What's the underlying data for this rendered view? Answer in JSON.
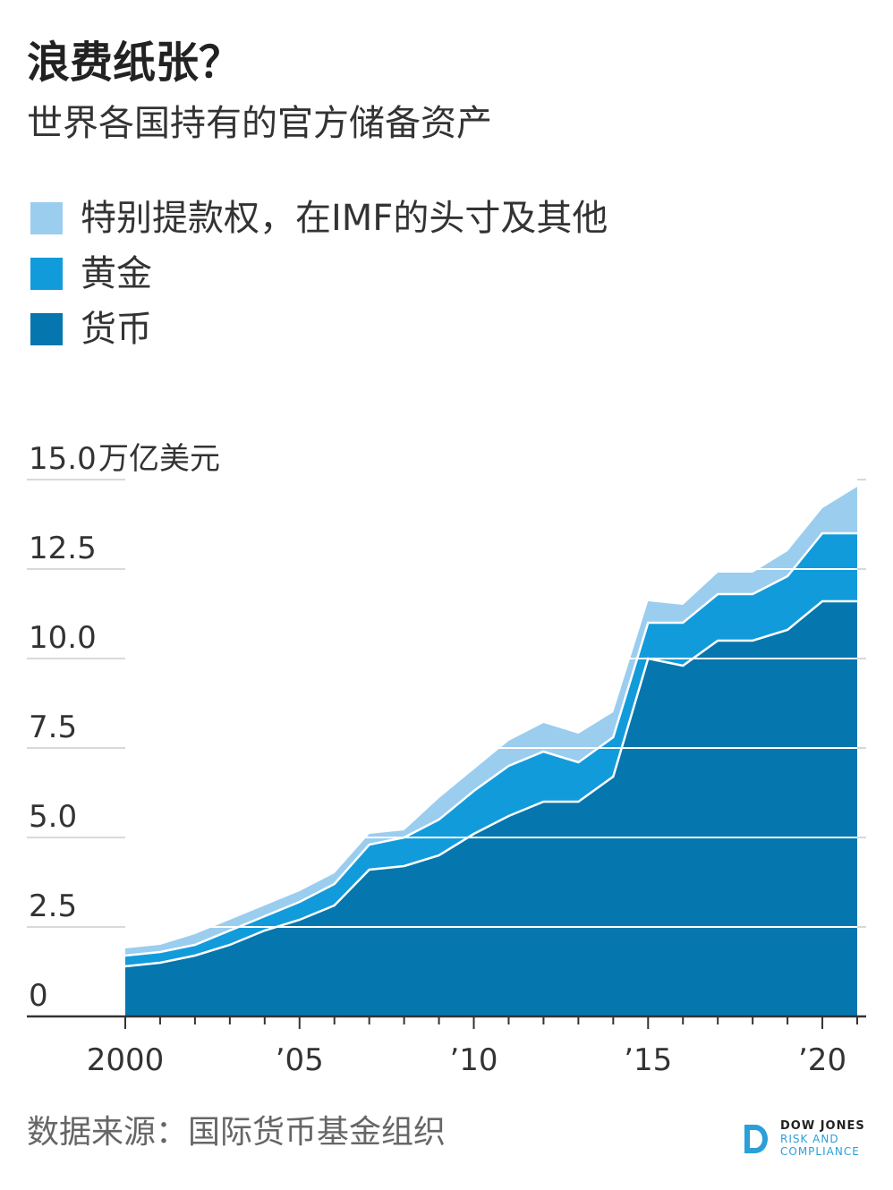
{
  "header": {
    "title": "浪费纸张？",
    "subtitle": "世界各国持有的官方储备资产"
  },
  "legend": [
    {
      "label": "特别提款权，在IMF的头寸及其他",
      "color": "#9bcdef"
    },
    {
      "label": "黄金",
      "color": "#129bdb"
    },
    {
      "label": "货币",
      "color": "#0576ae"
    }
  ],
  "source": "数据来源：国际货币基金组织",
  "brand": {
    "line1": "DOW JONES",
    "line2": "RISK AND",
    "line3": "COMPLIANCE",
    "color": "#2a9fd8"
  },
  "chart_data": {
    "type": "area",
    "stacked": true,
    "y_unit_label": "万亿美元",
    "x": [
      2000,
      2001,
      2002,
      2003,
      2004,
      2005,
      2006,
      2007,
      2008,
      2009,
      2010,
      2011,
      2012,
      2013,
      2014,
      2015,
      2016,
      2017,
      2018,
      2019,
      2020,
      2021
    ],
    "x_ticks": [
      {
        "value": 2000,
        "label": "2000"
      },
      {
        "value": 2005,
        "label": "’05"
      },
      {
        "value": 2010,
        "label": "’10"
      },
      {
        "value": 2015,
        "label": "’15"
      },
      {
        "value": 2020,
        "label": "’20"
      }
    ],
    "y_ticks": [
      "0",
      "2.5",
      "5.0",
      "7.5",
      "10.0",
      "12.5",
      "15.0"
    ],
    "ylim": [
      0,
      15
    ],
    "grid": true,
    "series": [
      {
        "name": "货币",
        "color": "#0576ae",
        "values": [
          1.4,
          1.5,
          1.7,
          2.0,
          2.4,
          2.7,
          3.1,
          4.1,
          4.2,
          4.5,
          5.1,
          5.6,
          6.0,
          6.0,
          6.7,
          10.0,
          9.8,
          10.5,
          10.5,
          10.8,
          11.6,
          11.6
        ]
      },
      {
        "name": "黄金",
        "color": "#129bdb",
        "values": [
          0.3,
          0.3,
          0.3,
          0.4,
          0.4,
          0.5,
          0.6,
          0.7,
          0.8,
          1.0,
          1.2,
          1.4,
          1.4,
          1.1,
          1.1,
          1.0,
          1.2,
          1.3,
          1.3,
          1.5,
          1.9,
          1.9
        ]
      },
      {
        "name": "特别提款权，在IMF的头寸及其他",
        "color": "#9bcdef",
        "values": [
          0.2,
          0.2,
          0.3,
          0.3,
          0.3,
          0.3,
          0.3,
          0.3,
          0.2,
          0.6,
          0.6,
          0.7,
          0.8,
          0.8,
          0.7,
          0.6,
          0.5,
          0.6,
          0.6,
          0.7,
          0.7,
          1.3
        ]
      }
    ]
  }
}
